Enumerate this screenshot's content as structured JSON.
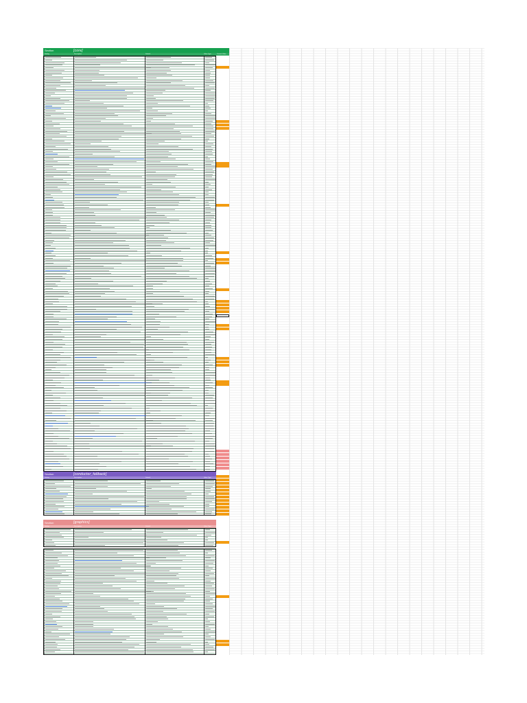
{
  "sheet": {
    "sections": [
      {
        "id": "core",
        "tag": "Section",
        "title": "[core]",
        "color": "#16a04f"
      },
      {
        "id": "conductor",
        "tag": "Section",
        "title": "[conductor_fallback]",
        "color": "#7b5cc4"
      },
      {
        "id": "graphics",
        "tag": "Section",
        "title": "[graphics]",
        "color": "#e88f8f"
      }
    ],
    "columns": [
      "Setting",
      "Description",
      "Default",
      "Value Type",
      "Current Value"
    ],
    "accent_orange": "#f39c12",
    "accent_pink": "#f08c8c"
  }
}
